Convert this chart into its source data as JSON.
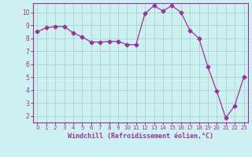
{
  "x": [
    0,
    1,
    2,
    3,
    4,
    5,
    6,
    7,
    8,
    9,
    10,
    11,
    12,
    13,
    14,
    15,
    16,
    17,
    18,
    19,
    20,
    21,
    22,
    23
  ],
  "y": [
    8.5,
    8.8,
    8.9,
    8.9,
    8.4,
    8.1,
    7.7,
    7.7,
    7.75,
    7.75,
    7.5,
    7.5,
    9.9,
    10.5,
    10.1,
    10.5,
    10.0,
    8.6,
    8.0,
    5.8,
    3.9,
    1.85,
    2.8,
    5.0
  ],
  "line_color": "#993399",
  "marker": "D",
  "marker_size": 2.5,
  "bg_color": "#cff0f0",
  "grid_color": "#aad8d8",
  "xlabel": "Windchill (Refroidissement éolien,°C)",
  "xlabel_color": "#993399",
  "tick_color": "#993399",
  "label_color": "#993399",
  "ylim": [
    1.5,
    10.7
  ],
  "xlim": [
    -0.5,
    23.5
  ],
  "yticks": [
    2,
    3,
    4,
    5,
    6,
    7,
    8,
    9,
    10
  ],
  "xticks": [
    0,
    1,
    2,
    3,
    4,
    5,
    6,
    7,
    8,
    9,
    10,
    11,
    12,
    13,
    14,
    15,
    16,
    17,
    18,
    19,
    20,
    21,
    22,
    23
  ]
}
